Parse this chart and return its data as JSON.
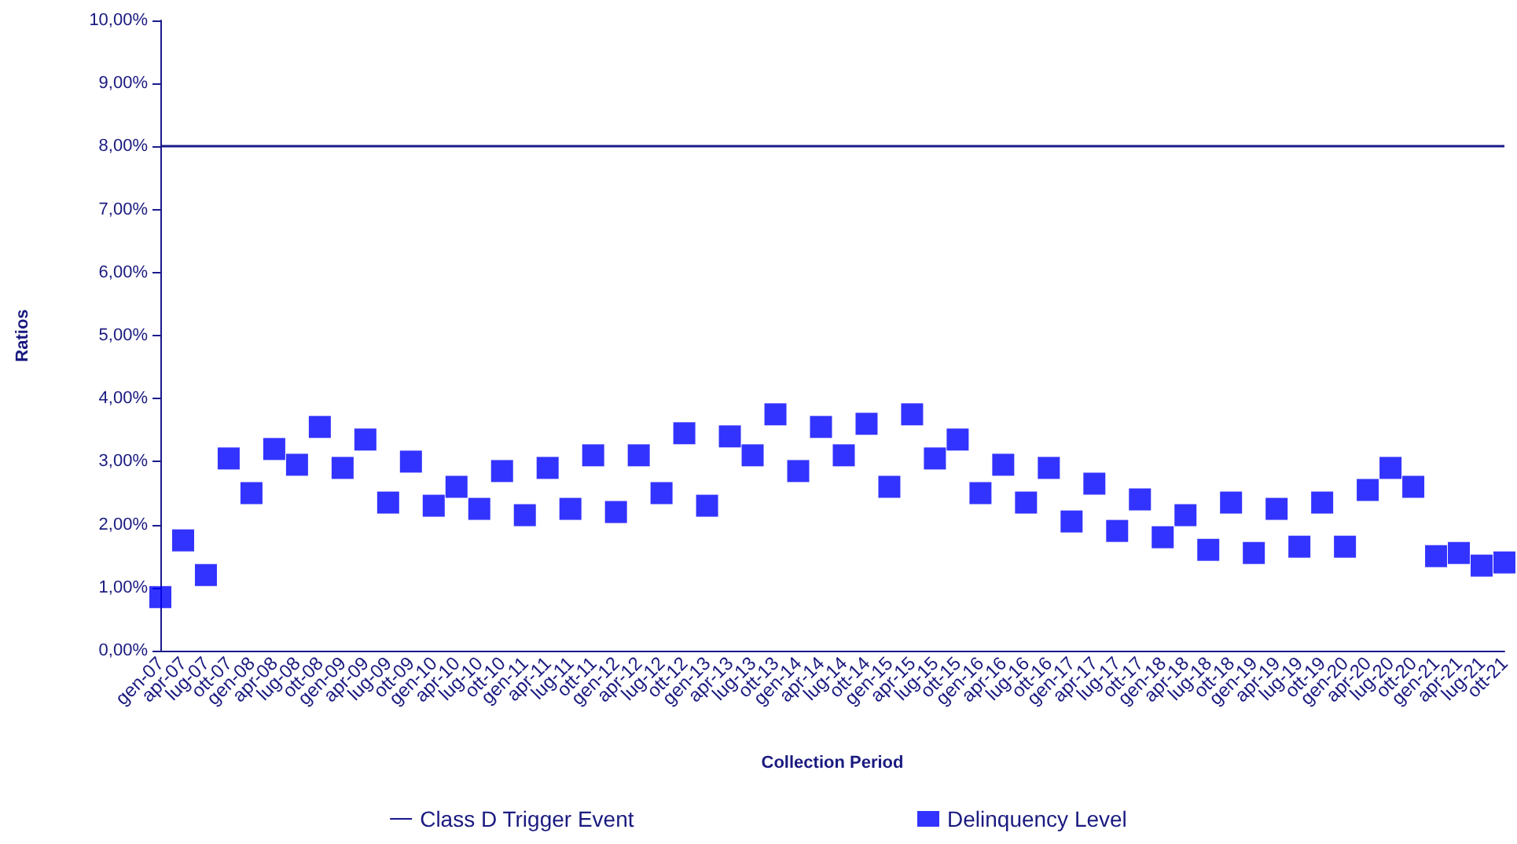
{
  "chart_data": {
    "type": "scatter",
    "xlabel": "Collection Period",
    "ylabel": "Ratios",
    "categories": [
      "gen-07",
      "apr-07",
      "lug-07",
      "ott-07",
      "gen-08",
      "apr-08",
      "lug-08",
      "ott-08",
      "gen-09",
      "apr-09",
      "lug-09",
      "ott-09",
      "gen-10",
      "apr-10",
      "lug-10",
      "ott-10",
      "gen-11",
      "apr-11",
      "lug-11",
      "ott-11",
      "gen-12",
      "apr-12",
      "lug-12",
      "ott-12",
      "gen-13",
      "apr-13",
      "lug-13",
      "ott-13",
      "gen-14",
      "apr-14",
      "lug-14",
      "ott-14",
      "gen-15",
      "apr-15",
      "lug-15",
      "ott-15",
      "gen-16",
      "apr-16",
      "lug-16",
      "ott-16",
      "gen-17",
      "apr-17",
      "lug-17",
      "ott-17",
      "gen-18",
      "apr-18",
      "lug-18",
      "ott-18",
      "gen-19",
      "apr-19",
      "lug-19",
      "ott-19",
      "gen-20",
      "apr-20",
      "lug-20",
      "ott-20",
      "gen-21",
      "apr-21",
      "lug-21",
      "ott-21"
    ],
    "series": [
      {
        "name": "Delinquency Level",
        "color": "#0000ff",
        "values": [
          0.85,
          1.75,
          1.2,
          3.05,
          2.5,
          3.2,
          2.95,
          3.55,
          2.9,
          3.35,
          2.35,
          3.0,
          2.3,
          2.6,
          2.25,
          2.85,
          2.15,
          2.9,
          2.25,
          3.1,
          2.2,
          3.1,
          2.5,
          3.45,
          2.3,
          3.4,
          3.1,
          3.75,
          2.85,
          3.55,
          3.1,
          3.6,
          2.6,
          3.75,
          3.05,
          3.35,
          2.5,
          2.95,
          2.35,
          2.9,
          2.05,
          2.65,
          1.9,
          2.4,
          1.8,
          2.15,
          1.6,
          2.35,
          1.55,
          2.25,
          1.65,
          2.35,
          1.65,
          2.55,
          2.9,
          2.6,
          1.5,
          1.55,
          1.35,
          1.4
        ]
      }
    ],
    "ylim": [
      0,
      10
    ],
    "yticks": [
      {
        "value": 0,
        "label": "0,00%"
      },
      {
        "value": 1,
        "label": "1,00%"
      },
      {
        "value": 2,
        "label": "2,00%"
      },
      {
        "value": 3,
        "label": "3,00%"
      },
      {
        "value": 4,
        "label": "4,00%"
      },
      {
        "value": 5,
        "label": "5,00%"
      },
      {
        "value": 6,
        "label": "6,00%"
      },
      {
        "value": 7,
        "label": "7,00%"
      },
      {
        "value": 8,
        "label": "8,00%"
      },
      {
        "value": 9,
        "label": "9,00%"
      },
      {
        "value": 10,
        "label": "10,00%"
      }
    ],
    "ref_lines": [
      {
        "axis": "y",
        "value": 8,
        "label": "Class D Trigger Event",
        "color": "#1a1a8c",
        "line_style": "solid"
      }
    ],
    "marker": "square",
    "grid": false,
    "legend": "bottom"
  }
}
